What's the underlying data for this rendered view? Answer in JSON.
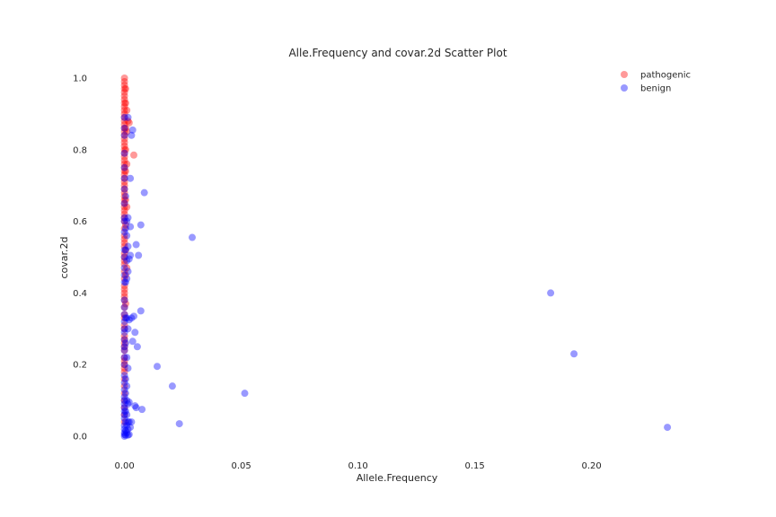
{
  "chart_data": {
    "type": "scatter",
    "title": "Alle.Frequency and covar.2d Scatter Plot",
    "xlabel": "Allele.Frequency",
    "ylabel": "covar.2d",
    "xlim": [
      -0.011,
      0.244
    ],
    "ylim": [
      -0.05,
      1.05
    ],
    "xticks": [
      "0.00",
      "0.05",
      "0.10",
      "0.15",
      "0.20"
    ],
    "xtick_values": [
      0,
      0.05,
      0.1,
      0.15,
      0.2
    ],
    "yticks": [
      "0.0",
      "0.2",
      "0.4",
      "0.6",
      "0.8",
      "1.0"
    ],
    "ytick_values": [
      0,
      0.2,
      0.4,
      0.6,
      0.8,
      1.0
    ],
    "grid": false,
    "legend_position": "top-right",
    "series": [
      {
        "name": "pathogenic",
        "color": "#ff0000",
        "opacity": 0.4,
        "points": [
          [
            0,
            1.0
          ],
          [
            0,
            0.99
          ],
          [
            0,
            0.98
          ],
          [
            0,
            0.97
          ],
          [
            0,
            0.96
          ],
          [
            0,
            0.95
          ],
          [
            0,
            0.94
          ],
          [
            0,
            0.93
          ],
          [
            0,
            0.92
          ],
          [
            0,
            0.91
          ],
          [
            0,
            0.9
          ],
          [
            0,
            0.89
          ],
          [
            0,
            0.88
          ],
          [
            0,
            0.87
          ],
          [
            0,
            0.86
          ],
          [
            0,
            0.85
          ],
          [
            0,
            0.84
          ],
          [
            0,
            0.83
          ],
          [
            0,
            0.82
          ],
          [
            0,
            0.81
          ],
          [
            0,
            0.8
          ],
          [
            0,
            0.79
          ],
          [
            0,
            0.78
          ],
          [
            0,
            0.77
          ],
          [
            0,
            0.76
          ],
          [
            0,
            0.75
          ],
          [
            0,
            0.74
          ],
          [
            0,
            0.73
          ],
          [
            0,
            0.72
          ],
          [
            0,
            0.71
          ],
          [
            0,
            0.7
          ],
          [
            0,
            0.69
          ],
          [
            0,
            0.68
          ],
          [
            0,
            0.67
          ],
          [
            0,
            0.66
          ],
          [
            0,
            0.65
          ],
          [
            0,
            0.64
          ],
          [
            0,
            0.63
          ],
          [
            0,
            0.62
          ],
          [
            0,
            0.61
          ],
          [
            0,
            0.6
          ],
          [
            0,
            0.58
          ],
          [
            0,
            0.56
          ],
          [
            0,
            0.55
          ],
          [
            0,
            0.54
          ],
          [
            0,
            0.53
          ],
          [
            0,
            0.51
          ],
          [
            0,
            0.5
          ],
          [
            0,
            0.49
          ],
          [
            0,
            0.48
          ],
          [
            0,
            0.46
          ],
          [
            0,
            0.44
          ],
          [
            0,
            0.42
          ],
          [
            0,
            0.41
          ],
          [
            0,
            0.4
          ],
          [
            0,
            0.39
          ],
          [
            0,
            0.38
          ],
          [
            0,
            0.36
          ],
          [
            0,
            0.34
          ],
          [
            0,
            0.33
          ],
          [
            0,
            0.31
          ],
          [
            0,
            0.3
          ],
          [
            0,
            0.28
          ],
          [
            0,
            0.27
          ],
          [
            0,
            0.26
          ],
          [
            0,
            0.25
          ],
          [
            0,
            0.24
          ],
          [
            0,
            0.22
          ],
          [
            0,
            0.21
          ],
          [
            0,
            0.2
          ],
          [
            0,
            0.19
          ],
          [
            0,
            0.18
          ],
          [
            0,
            0.16
          ],
          [
            0,
            0.14
          ],
          [
            0,
            0.12
          ],
          [
            0,
            0.1
          ],
          [
            0,
            0.08
          ],
          [
            0,
            0.06
          ],
          [
            0,
            0.04
          ],
          [
            0.0005,
            0.97
          ],
          [
            0.0005,
            0.93
          ],
          [
            0.0005,
            0.86
          ],
          [
            0.0005,
            0.8
          ],
          [
            0.0005,
            0.74
          ],
          [
            0.0005,
            0.66
          ],
          [
            0.0005,
            0.59
          ],
          [
            0.0005,
            0.52
          ],
          [
            0.0005,
            0.45
          ],
          [
            0.0005,
            0.37
          ],
          [
            0.001,
            0.91
          ],
          [
            0.001,
            0.85
          ],
          [
            0.001,
            0.76
          ],
          [
            0.001,
            0.64
          ],
          [
            0.001,
            0.47
          ],
          [
            0.0015,
            0.88
          ],
          [
            0.002,
            0.875
          ],
          [
            0.004,
            0.785
          ]
        ]
      },
      {
        "name": "benign",
        "color": "#0000ff",
        "opacity": 0.4,
        "points": [
          [
            0,
            0.0
          ],
          [
            0,
            0.005
          ],
          [
            0,
            0.01
          ],
          [
            0,
            0.02
          ],
          [
            0,
            0.03
          ],
          [
            0,
            0.05
          ],
          [
            0,
            0.06
          ],
          [
            0,
            0.07
          ],
          [
            0,
            0.08
          ],
          [
            0,
            0.09
          ],
          [
            0,
            0.1
          ],
          [
            0,
            0.11
          ],
          [
            0,
            0.13
          ],
          [
            0,
            0.15
          ],
          [
            0,
            0.17
          ],
          [
            0,
            0.2
          ],
          [
            0,
            0.22
          ],
          [
            0,
            0.24
          ],
          [
            0,
            0.25
          ],
          [
            0,
            0.27
          ],
          [
            0,
            0.29
          ],
          [
            0,
            0.3
          ],
          [
            0,
            0.32
          ],
          [
            0,
            0.34
          ],
          [
            0,
            0.36
          ],
          [
            0,
            0.38
          ],
          [
            0,
            0.43
          ],
          [
            0,
            0.45
          ],
          [
            0,
            0.47
          ],
          [
            0,
            0.5
          ],
          [
            0,
            0.52
          ],
          [
            0,
            0.57
          ],
          [
            0,
            0.6
          ],
          [
            0,
            0.61
          ],
          [
            0,
            0.65
          ],
          [
            0,
            0.69
          ],
          [
            0,
            0.72
          ],
          [
            0,
            0.75
          ],
          [
            0,
            0.79
          ],
          [
            0,
            0.84
          ],
          [
            0,
            0.86
          ],
          [
            0,
            0.89
          ],
          [
            0.0005,
            0.003
          ],
          [
            0.0005,
            0.015
          ],
          [
            0.0005,
            0.04
          ],
          [
            0.0005,
            0.07
          ],
          [
            0.0005,
            0.12
          ],
          [
            0.0005,
            0.16
          ],
          [
            0.0005,
            0.26
          ],
          [
            0.0005,
            0.33
          ],
          [
            0.0005,
            0.43
          ],
          [
            0.0005,
            0.52
          ],
          [
            0.0005,
            0.58
          ],
          [
            0.0005,
            0.67
          ],
          [
            0.001,
            0.01
          ],
          [
            0.001,
            0.03
          ],
          [
            0.001,
            0.06
          ],
          [
            0.001,
            0.1
          ],
          [
            0.001,
            0.14
          ],
          [
            0.001,
            0.22
          ],
          [
            0.001,
            0.33
          ],
          [
            0.001,
            0.44
          ],
          [
            0.001,
            0.49
          ],
          [
            0.001,
            0.56
          ],
          [
            0.001,
            0.6
          ],
          [
            0.0015,
            0.003
          ],
          [
            0.0015,
            0.02
          ],
          [
            0.0015,
            0.04
          ],
          [
            0.0015,
            0.09
          ],
          [
            0.0015,
            0.19
          ],
          [
            0.0015,
            0.3
          ],
          [
            0.0015,
            0.46
          ],
          [
            0.0015,
            0.53
          ],
          [
            0.0015,
            0.61
          ],
          [
            0.0015,
            0.89
          ],
          [
            0.002,
            0.005
          ],
          [
            0.002,
            0.04
          ],
          [
            0.002,
            0.095
          ],
          [
            0.002,
            0.325
          ],
          [
            0.002,
            0.495
          ],
          [
            0.0025,
            0.025
          ],
          [
            0.0025,
            0.505
          ],
          [
            0.0025,
            0.585
          ],
          [
            0.0025,
            0.72
          ],
          [
            0.003,
            0.04
          ],
          [
            0.003,
            0.33
          ],
          [
            0.003,
            0.84
          ],
          [
            0.0035,
            0.855
          ],
          [
            0.0035,
            0.265
          ],
          [
            0.004,
            0.335
          ],
          [
            0.0045,
            0.29
          ],
          [
            0.0045,
            0.085
          ],
          [
            0.005,
            0.535
          ],
          [
            0.005,
            0.08
          ],
          [
            0.0055,
            0.25
          ],
          [
            0.006,
            0.505
          ],
          [
            0.007,
            0.59
          ],
          [
            0.007,
            0.35
          ],
          [
            0.0075,
            0.075
          ],
          [
            0.0085,
            0.68
          ],
          [
            0.014,
            0.195
          ],
          [
            0.0205,
            0.14
          ],
          [
            0.0235,
            0.035
          ],
          [
            0.029,
            0.555
          ],
          [
            0.0515,
            0.12
          ],
          [
            0.1825,
            0.4
          ],
          [
            0.1925,
            0.23
          ],
          [
            0.2325,
            0.025
          ]
        ]
      }
    ]
  }
}
